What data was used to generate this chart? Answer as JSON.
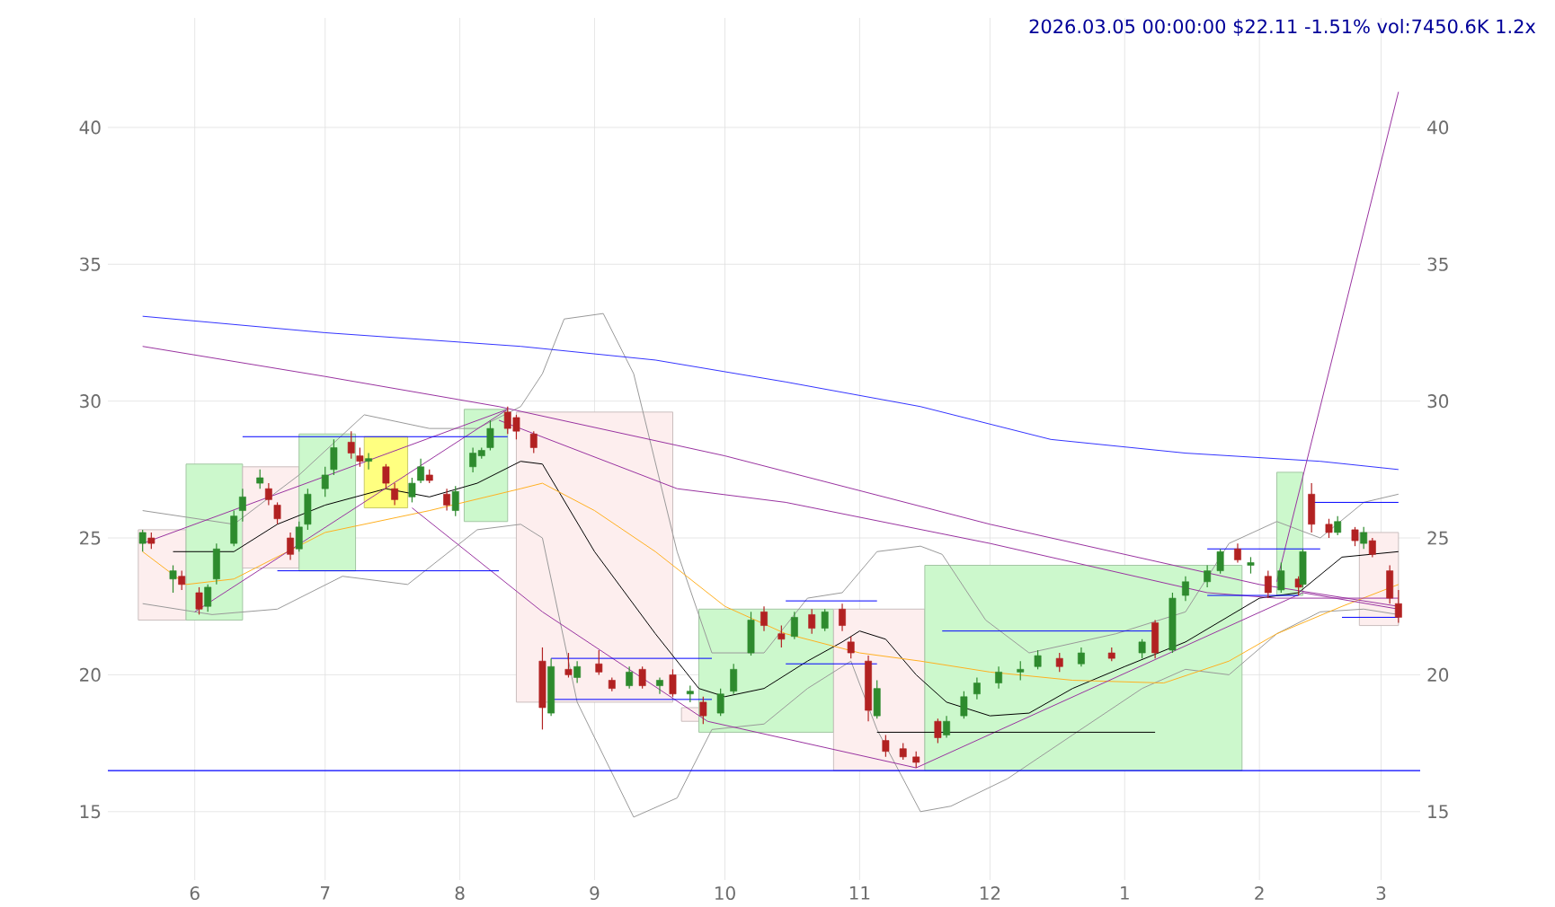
{
  "chart_data": {
    "type": "candlestick",
    "title": "2026.03.05 00:00:00 $22.11 -1.51% vol:7450.6K 1.2x",
    "x": [
      "2025-05-20",
      "2025-05-22",
      "2025-05-27",
      "2025-05-29",
      "2025-06-02",
      "2025-06-04",
      "2025-06-06",
      "2025-06-10",
      "2025-06-12",
      "2025-06-16",
      "2025-06-18",
      "2025-06-20",
      "2025-06-23",
      "2025-06-25",
      "2025-06-27",
      "2025-07-01",
      "2025-07-03",
      "2025-07-07",
      "2025-07-09",
      "2025-07-11",
      "2025-07-15",
      "2025-07-17",
      "2025-07-21",
      "2025-07-23",
      "2025-07-25",
      "2025-07-29",
      "2025-07-31",
      "2025-08-04",
      "2025-08-06",
      "2025-08-08",
      "2025-08-12",
      "2025-08-14",
      "2025-08-18",
      "2025-08-20",
      "2025-08-22",
      "2025-08-26",
      "2025-08-28",
      "2025-09-02",
      "2025-09-05",
      "2025-09-09",
      "2025-09-12",
      "2025-09-16",
      "2025-09-19",
      "2025-09-23",
      "2025-09-26",
      "2025-09-30",
      "2025-10-03",
      "2025-10-07",
      "2025-10-10",
      "2025-10-14",
      "2025-10-17",
      "2025-10-21",
      "2025-10-24",
      "2025-10-28",
      "2025-10-30",
      "2025-11-03",
      "2025-11-05",
      "2025-11-07",
      "2025-11-11",
      "2025-11-14",
      "2025-11-19",
      "2025-11-21",
      "2025-11-25",
      "2025-11-28",
      "2025-12-03",
      "2025-12-08",
      "2025-12-12",
      "2025-12-17",
      "2025-12-22",
      "2025-12-29",
      "2026-01-05",
      "2026-01-08",
      "2026-01-12",
      "2026-01-15",
      "2026-01-20",
      "2026-01-23",
      "2026-01-27",
      "2026-01-30",
      "2026-02-03",
      "2026-02-06",
      "2026-02-10",
      "2026-02-11",
      "2026-02-13",
      "2026-02-17",
      "2026-02-19",
      "2026-02-23",
      "2026-02-25",
      "2026-02-27",
      "2026-03-03",
      "2026-03-05"
    ],
    "ohlc": [
      [
        24.8,
        25.3,
        24.5,
        25.2
      ],
      [
        25.0,
        25.2,
        24.6,
        24.8
      ],
      [
        23.5,
        24.0,
        23.0,
        23.8
      ],
      [
        23.6,
        23.8,
        23.1,
        23.3
      ],
      [
        23.0,
        23.2,
        22.2,
        22.4
      ],
      [
        22.5,
        23.3,
        22.3,
        23.2
      ],
      [
        23.5,
        24.8,
        23.3,
        24.6
      ],
      [
        24.8,
        26.0,
        24.7,
        25.8
      ],
      [
        26.0,
        26.8,
        25.6,
        26.5
      ],
      [
        27.0,
        27.5,
        26.8,
        27.2
      ],
      [
        26.8,
        27.0,
        26.2,
        26.4
      ],
      [
        26.2,
        26.3,
        25.5,
        25.7
      ],
      [
        25.0,
        25.2,
        24.2,
        24.4
      ],
      [
        24.6,
        25.6,
        24.5,
        25.4
      ],
      [
        25.5,
        26.8,
        25.3,
        26.6
      ],
      [
        26.8,
        27.6,
        26.5,
        27.3
      ],
      [
        27.5,
        28.6,
        27.3,
        28.3
      ],
      [
        28.5,
        28.9,
        27.9,
        28.1
      ],
      [
        28.0,
        28.3,
        27.6,
        27.8
      ],
      [
        27.8,
        28.1,
        27.5,
        27.9
      ],
      [
        27.6,
        27.7,
        26.8,
        27.0
      ],
      [
        26.8,
        27.0,
        26.2,
        26.4
      ],
      [
        26.5,
        27.2,
        26.3,
        27.0
      ],
      [
        27.1,
        27.9,
        27.0,
        27.6
      ],
      [
        27.3,
        27.5,
        27.0,
        27.1
      ],
      [
        26.6,
        26.8,
        26.0,
        26.2
      ],
      [
        26.0,
        26.9,
        25.8,
        26.7
      ],
      [
        27.6,
        28.3,
        27.4,
        28.1
      ],
      [
        28.0,
        28.3,
        27.9,
        28.2
      ],
      [
        28.3,
        29.3,
        28.2,
        29.0
      ],
      [
        29.6,
        29.8,
        28.8,
        29.0
      ],
      [
        29.4,
        29.5,
        28.6,
        28.9
      ],
      [
        28.8,
        28.9,
        28.1,
        28.3
      ],
      [
        20.5,
        21.0,
        18.0,
        18.8
      ],
      [
        18.6,
        20.6,
        18.5,
        20.3
      ],
      [
        20.2,
        20.8,
        19.9,
        20.0
      ],
      [
        19.9,
        20.5,
        19.7,
        20.3
      ],
      [
        20.4,
        20.9,
        20.0,
        20.1
      ],
      [
        19.8,
        19.9,
        19.4,
        19.5
      ],
      [
        19.6,
        20.3,
        19.5,
        20.1
      ],
      [
        20.2,
        20.3,
        19.5,
        19.6
      ],
      [
        19.6,
        19.9,
        19.3,
        19.8
      ],
      [
        20.0,
        20.2,
        19.2,
        19.3
      ],
      [
        19.3,
        19.6,
        19.0,
        19.4
      ],
      [
        19.0,
        19.2,
        18.2,
        18.5
      ],
      [
        18.6,
        19.5,
        18.5,
        19.3
      ],
      [
        19.4,
        20.4,
        19.3,
        20.2
      ],
      [
        20.8,
        22.3,
        20.7,
        22.0
      ],
      [
        22.3,
        22.5,
        21.6,
        21.8
      ],
      [
        21.5,
        21.8,
        21.0,
        21.3
      ],
      [
        21.4,
        22.3,
        21.3,
        22.1
      ],
      [
        22.2,
        22.4,
        21.5,
        21.7
      ],
      [
        21.7,
        22.4,
        21.6,
        22.3
      ],
      [
        22.4,
        22.6,
        21.6,
        21.8
      ],
      [
        21.2,
        21.4,
        20.6,
        20.8
      ],
      [
        20.5,
        20.7,
        18.3,
        18.7
      ],
      [
        18.5,
        19.8,
        18.4,
        19.5
      ],
      [
        17.6,
        17.8,
        17.0,
        17.2
      ],
      [
        17.3,
        17.5,
        16.9,
        17.0
      ],
      [
        17.0,
        17.2,
        16.6,
        16.8
      ],
      [
        18.3,
        18.4,
        17.5,
        17.7
      ],
      [
        17.8,
        18.5,
        17.7,
        18.3
      ],
      [
        18.5,
        19.4,
        18.4,
        19.2
      ],
      [
        19.3,
        19.9,
        19.1,
        19.7
      ],
      [
        19.7,
        20.3,
        19.5,
        20.1
      ],
      [
        20.1,
        20.5,
        19.8,
        20.2
      ],
      [
        20.3,
        20.9,
        20.2,
        20.7
      ],
      [
        20.6,
        20.8,
        20.1,
        20.3
      ],
      [
        20.4,
        21.0,
        20.3,
        20.8
      ],
      [
        20.8,
        21.0,
        20.5,
        20.6
      ],
      [
        20.8,
        21.3,
        20.6,
        21.2
      ],
      [
        21.9,
        22.0,
        20.6,
        20.8
      ],
      [
        20.9,
        23.0,
        20.8,
        22.8
      ],
      [
        22.9,
        23.6,
        22.7,
        23.4
      ],
      [
        23.4,
        24.0,
        23.2,
        23.8
      ],
      [
        23.8,
        24.6,
        23.7,
        24.5
      ],
      [
        24.6,
        24.8,
        24.1,
        24.2
      ],
      [
        24.0,
        24.3,
        23.7,
        24.1
      ],
      [
        23.6,
        23.8,
        22.8,
        23.0
      ],
      [
        23.1,
        24.1,
        23.0,
        23.8
      ],
      [
        23.5,
        23.6,
        22.9,
        23.2
      ],
      [
        23.3,
        24.6,
        23.2,
        24.5
      ],
      [
        26.6,
        27.0,
        25.2,
        25.5
      ],
      [
        25.5,
        25.7,
        25.0,
        25.2
      ],
      [
        25.2,
        25.8,
        25.1,
        25.6
      ],
      [
        25.3,
        25.4,
        24.7,
        24.9
      ],
      [
        24.8,
        25.4,
        24.6,
        25.2
      ],
      [
        24.9,
        25.0,
        24.3,
        24.4
      ],
      [
        23.8,
        24.0,
        22.6,
        22.8
      ],
      [
        22.6,
        23.1,
        21.9,
        22.1
      ]
    ],
    "series": [
      {
        "type": "area",
        "color": "#fdeeee",
        "x": [
          "2025-05-19",
          "2025-05-30",
          "2025-05-30",
          "2025-05-19",
          "2025-05-19"
        ],
        "values": [
          22.0,
          22.0,
          25.3,
          25.3,
          22.0
        ]
      },
      {
        "type": "area",
        "color": "#ccf8cc",
        "x": [
          "2025-05-30",
          "2025-06-12",
          "2025-06-12",
          "2025-05-30",
          "2025-05-30"
        ],
        "values": [
          22.0,
          22.0,
          27.7,
          27.7,
          22.0
        ]
      },
      {
        "type": "area",
        "color": "#fdeeee",
        "x": [
          "2025-06-12",
          "2025-06-25",
          "2025-06-25",
          "2025-06-12",
          "2025-06-12"
        ],
        "values": [
          23.9,
          23.9,
          27.6,
          27.6,
          23.9
        ]
      },
      {
        "type": "area",
        "color": "#ccf8cc",
        "x": [
          "2025-06-25",
          "2025-07-08",
          "2025-07-08",
          "2025-06-25",
          "2025-06-25"
        ],
        "values": [
          23.8,
          23.8,
          28.8,
          28.8,
          23.8
        ]
      },
      {
        "type": "area",
        "color": "#ffff80",
        "x": [
          "2025-07-10",
          "2025-07-20",
          "2025-07-20",
          "2025-07-10",
          "2025-07-10"
        ],
        "values": [
          26.1,
          26.1,
          28.7,
          28.7,
          26.1
        ]
      },
      {
        "type": "area",
        "color": "#ccf8cc",
        "x": [
          "2025-08-02",
          "2025-08-12",
          "2025-08-12",
          "2025-08-02",
          "2025-08-02"
        ],
        "values": [
          25.6,
          25.6,
          29.7,
          29.7,
          25.6
        ]
      },
      {
        "type": "area",
        "color": "#fdeeee",
        "x": [
          "2025-08-14",
          "2025-09-19",
          "2025-09-19",
          "2025-08-14",
          "2025-08-14"
        ],
        "values": [
          19.0,
          19.0,
          29.6,
          29.6,
          19.0
        ]
      },
      {
        "type": "area",
        "color": "#fdeeee",
        "x": [
          "2025-09-21",
          "2025-09-25",
          "2025-09-25",
          "2025-09-21",
          "2025-09-21"
        ],
        "values": [
          18.3,
          18.3,
          18.8,
          18.8,
          18.3
        ]
      },
      {
        "type": "area",
        "color": "#ccf8cc",
        "x": [
          "2025-09-25",
          "2025-10-26",
          "2025-10-26",
          "2025-09-25",
          "2025-09-25"
        ],
        "values": [
          17.9,
          17.9,
          22.4,
          22.4,
          17.9
        ]
      },
      {
        "type": "area",
        "color": "#fdeeee",
        "x": [
          "2025-10-26",
          "2025-11-16",
          "2025-11-16",
          "2025-10-26",
          "2025-10-26"
        ],
        "values": [
          16.5,
          16.5,
          22.4,
          22.4,
          16.5
        ]
      },
      {
        "type": "area",
        "color": "#ccf8cc",
        "x": [
          "2025-11-16",
          "2026-01-28",
          "2026-01-28",
          "2025-11-16",
          "2025-11-16"
        ],
        "values": [
          16.5,
          16.5,
          24.0,
          24.0,
          16.5
        ]
      },
      {
        "type": "area",
        "color": "#ccf8cc",
        "x": [
          "2026-02-05",
          "2026-02-11",
          "2026-02-11",
          "2026-02-05",
          "2026-02-05"
        ],
        "values": [
          22.9,
          22.9,
          27.4,
          27.4,
          22.9
        ]
      },
      {
        "type": "area",
        "color": "#fdeeee",
        "x": [
          "2026-02-24",
          "2026-03-05",
          "2026-03-05",
          "2026-02-24",
          "2026-02-24"
        ],
        "values": [
          21.8,
          21.8,
          25.2,
          25.2,
          21.8
        ]
      },
      {
        "type": "line",
        "color": "#999999",
        "x": [
          "2025-05-20",
          "2025-06-10",
          "2025-06-25",
          "2025-07-10",
          "2025-07-25",
          "2025-08-05",
          "2025-08-15",
          "2025-08-20",
          "2025-08-25",
          "2025-09-03",
          "2025-09-10",
          "2025-09-20",
          "2025-09-28",
          "2025-10-10",
          "2025-10-20",
          "2025-10-28",
          "2025-11-05",
          "2025-11-15",
          "2025-11-20",
          "2025-11-30",
          "2025-12-10",
          "2025-12-30",
          "2026-01-15",
          "2026-01-25",
          "2026-02-05",
          "2026-02-15",
          "2026-02-25",
          "2026-03-05"
        ],
        "values": [
          26.0,
          25.5,
          27.3,
          29.5,
          29.0,
          29.0,
          29.8,
          31.0,
          33.0,
          33.2,
          31.0,
          24.5,
          20.8,
          20.8,
          22.8,
          23.0,
          24.5,
          24.7,
          24.4,
          22.0,
          20.8,
          21.5,
          22.3,
          24.8,
          25.6,
          25.0,
          26.3,
          26.6
        ]
      },
      {
        "type": "line",
        "color": "#999999",
        "x": [
          "2025-05-20",
          "2025-06-05",
          "2025-06-20",
          "2025-07-05",
          "2025-07-20",
          "2025-08-05",
          "2025-08-15",
          "2025-08-20",
          "2025-08-28",
          "2025-09-10",
          "2025-09-20",
          "2025-09-28",
          "2025-10-10",
          "2025-10-20",
          "2025-10-30",
          "2025-11-05",
          "2025-11-15",
          "2025-11-22",
          "2025-12-05",
          "2025-12-20",
          "2026-01-05",
          "2026-01-15",
          "2026-01-25",
          "2026-02-05",
          "2026-02-15",
          "2026-02-25",
          "2026-03-05"
        ],
        "values": [
          22.6,
          22.2,
          22.4,
          23.6,
          23.3,
          25.3,
          25.5,
          25.0,
          19.0,
          14.8,
          15.5,
          18.0,
          18.2,
          19.5,
          20.5,
          18.0,
          15.0,
          15.2,
          16.2,
          17.8,
          19.5,
          20.2,
          20.0,
          21.5,
          22.3,
          22.4,
          22.2
        ]
      },
      {
        "type": "line",
        "color": "#000000",
        "x": [
          "2025-05-27",
          "2025-06-10",
          "2025-06-20",
          "2025-07-01",
          "2025-07-15",
          "2025-07-25",
          "2025-08-05",
          "2025-08-15",
          "2025-08-20",
          "2025-09-01",
          "2025-09-15",
          "2025-09-25",
          "2025-10-01",
          "2025-10-10",
          "2025-10-20",
          "2025-10-28",
          "2025-11-01",
          "2025-11-07",
          "2025-11-14",
          "2025-11-21",
          "2025-12-01",
          "2025-12-10",
          "2025-12-20",
          "2026-01-01",
          "2026-01-15",
          "2026-02-01",
          "2026-02-10",
          "2026-02-20",
          "2026-03-05"
        ],
        "values": [
          24.5,
          24.5,
          25.5,
          26.2,
          26.8,
          26.5,
          27.0,
          27.8,
          27.7,
          24.5,
          21.5,
          19.5,
          19.2,
          19.5,
          20.5,
          21.2,
          21.6,
          21.3,
          20.0,
          19.0,
          18.5,
          18.6,
          19.5,
          20.3,
          21.2,
          22.8,
          23.0,
          24.3,
          24.5
        ]
      },
      {
        "type": "line",
        "color": "#ffb020",
        "x": [
          "2025-05-20",
          "2025-05-30",
          "2025-06-10",
          "2025-07-01",
          "2025-07-25",
          "2025-08-15",
          "2025-08-20",
          "2025-09-01",
          "2025-09-15",
          "2025-10-01",
          "2025-10-15",
          "2025-11-01",
          "2025-11-15",
          "2025-12-01",
          "2025-12-20",
          "2026-01-10",
          "2026-01-25",
          "2026-02-05",
          "2026-02-20",
          "2026-03-05"
        ],
        "values": [
          24.5,
          23.3,
          23.5,
          25.2,
          26.0,
          26.8,
          27.0,
          26.0,
          24.5,
          22.5,
          21.5,
          20.8,
          20.5,
          20.1,
          19.8,
          19.7,
          20.5,
          21.5,
          22.5,
          23.3
        ]
      },
      {
        "type": "line",
        "color": "#3333ff",
        "x": [
          "2025-05-20",
          "2025-07-01",
          "2025-08-15",
          "2025-09-15",
          "2025-10-15",
          "2025-11-15",
          "2025-12-15",
          "2026-01-15",
          "2026-02-15",
          "2026-03-05"
        ],
        "values": [
          33.1,
          32.5,
          32.0,
          31.5,
          30.7,
          29.8,
          28.6,
          28.1,
          27.8,
          27.5
        ]
      },
      {
        "type": "line",
        "color": "#9932a0",
        "x": [
          "2025-05-20",
          "2025-07-01",
          "2025-08-10",
          "2025-10-01",
          "2025-12-01",
          "2026-02-01",
          "2026-03-05"
        ],
        "values": [
          32.0,
          30.9,
          29.8,
          28.0,
          25.5,
          23.3,
          22.5
        ]
      },
      {
        "type": "line",
        "color": "#9932a0",
        "x": [
          "2025-08-10",
          "2025-09-20",
          "2025-10-15",
          "2025-12-01",
          "2026-01-20",
          "2026-02-05",
          "2026-03-05"
        ],
        "values": [
          29.3,
          26.8,
          26.3,
          24.8,
          23.0,
          22.8,
          22.8
        ]
      },
      {
        "type": "line",
        "color": "#9932a0",
        "x": [
          "2025-05-20",
          "2025-08-12"
        ],
        "values": [
          24.8,
          29.7
        ]
      },
      {
        "type": "line",
        "color": "#9932a0",
        "x": [
          "2025-06-01",
          "2025-08-12"
        ],
        "values": [
          22.3,
          29.7
        ]
      },
      {
        "type": "line",
        "color": "#9932a0",
        "x": [
          "2025-07-21",
          "2025-08-20",
          "2025-09-27",
          "2025-11-14"
        ],
        "values": [
          26.1,
          22.3,
          18.3,
          16.6
        ]
      },
      {
        "type": "line",
        "color": "#9932a0",
        "x": [
          "2025-11-14",
          "2026-02-11",
          "2026-03-05"
        ],
        "values": [
          16.6,
          23.0,
          22.4
        ]
      },
      {
        "type": "line",
        "color": "#9932a0",
        "x": [
          "2026-02-05",
          "2026-03-05"
        ],
        "values": [
          23.4,
          41.3
        ]
      },
      {
        "type": "line",
        "color": "#0000ff",
        "x": [
          "2025-06-12",
          "2025-08-12"
        ],
        "values": [
          28.7,
          28.7
        ]
      },
      {
        "type": "line",
        "color": "#0000ff",
        "x": [
          "2025-06-20",
          "2025-08-10"
        ],
        "values": [
          23.8,
          23.8
        ]
      },
      {
        "type": "line",
        "color": "#0000ff",
        "x": [
          "2025-08-22",
          "2025-09-28"
        ],
        "values": [
          20.6,
          20.6
        ]
      },
      {
        "type": "line",
        "color": "#0000ff",
        "x": [
          "2025-08-22",
          "2025-09-28"
        ],
        "values": [
          19.1,
          19.1
        ]
      },
      {
        "type": "line",
        "color": "#0000ff",
        "x": [
          "2025-10-15",
          "2025-11-05"
        ],
        "values": [
          22.7,
          22.7
        ]
      },
      {
        "type": "line",
        "color": "#0000ff",
        "x": [
          "2025-10-15",
          "2025-11-05"
        ],
        "values": [
          20.4,
          20.4
        ]
      },
      {
        "type": "line",
        "color": "#0000ff",
        "x": [
          "2025-11-20",
          "2026-01-08"
        ],
        "values": [
          21.6,
          21.6
        ]
      },
      {
        "type": "line",
        "color": "#000000",
        "x": [
          "2025-11-05",
          "2026-01-08"
        ],
        "values": [
          17.9,
          17.9
        ]
      },
      {
        "type": "line",
        "color": "#0000ff",
        "x": [
          "2026-01-20",
          "2026-02-15"
        ],
        "values": [
          24.6,
          24.6
        ]
      },
      {
        "type": "line",
        "color": "#0000ff",
        "x": [
          "2026-01-20",
          "2026-02-10"
        ],
        "values": [
          22.9,
          22.9
        ]
      },
      {
        "type": "line",
        "color": "#0000ff",
        "x": [
          "2026-02-13",
          "2026-03-05"
        ],
        "values": [
          26.3,
          26.3
        ]
      },
      {
        "type": "line",
        "color": "#0000ff",
        "x": [
          "2026-02-20",
          "2026-03-05"
        ],
        "values": [
          22.1,
          22.1
        ]
      }
    ],
    "ref_lines": [
      {
        "axis": "y",
        "value": 16.5,
        "color": "#0000ff"
      }
    ],
    "xlim": [
      "2025-05-12",
      "2026-03-10"
    ],
    "xticks": [
      {
        "value": "2025-06-01",
        "label": "6"
      },
      {
        "value": "2025-07-01",
        "label": "7"
      },
      {
        "value": "2025-08-01",
        "label": "8"
      },
      {
        "value": "2025-09-01",
        "label": "9"
      },
      {
        "value": "2025-10-01",
        "label": "10"
      },
      {
        "value": "2025-11-01",
        "label": "11"
      },
      {
        "value": "2025-12-01",
        "label": "12"
      },
      {
        "value": "2026-01-01",
        "label": "1"
      },
      {
        "value": "2026-02-01",
        "label": "2"
      },
      {
        "value": "2026-03-01",
        "label": "3"
      }
    ],
    "ylim": [
      12.5,
      44
    ],
    "yticks": [
      15,
      20,
      25,
      30,
      35,
      40
    ],
    "y2lim": [
      12.5,
      44
    ],
    "y2ticks": [
      15,
      20,
      25,
      30,
      35,
      40
    ],
    "grid": true
  }
}
